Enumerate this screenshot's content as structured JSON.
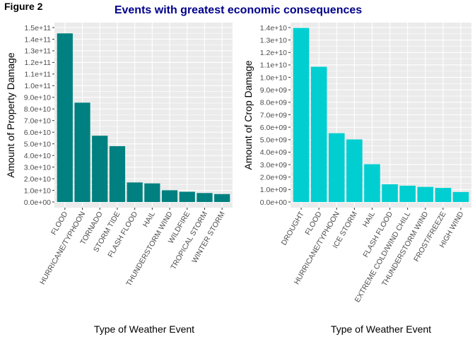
{
  "figure_label": "Figure 2",
  "title": "Events with greatest economic consequences",
  "colors": {
    "panel_bg": "#ebebeb",
    "grid": "#ffffff",
    "tick_text": "#4d4d4d",
    "title": "#00008b",
    "property_bar": "#008080",
    "crop_bar": "#00ced1"
  },
  "chart_data": [
    {
      "type": "bar",
      "title": "",
      "xlabel": "Type of Weather Event",
      "ylabel": "Amount of Property Damage",
      "categories": [
        "FLOOD",
        "HURRICANE/TYPHOON",
        "TORNADO",
        "STORM TIDE",
        "FLASH FLOOD",
        "HAIL",
        "THUNDERSTORM WIND",
        "WILDFIRE",
        "TROPICAL STORM",
        "WINTER STORM"
      ],
      "values": [
        145000000000,
        85400000000,
        57000000000,
        48000000000,
        16800000000,
        16000000000,
        10100000000,
        8800000000,
        7700000000,
        6800000000
      ],
      "ylim": [
        0,
        150000000000
      ],
      "yticks": [
        0,
        10000000000,
        20000000000,
        30000000000,
        40000000000,
        50000000000,
        60000000000,
        70000000000,
        80000000000,
        90000000000,
        100000000000,
        110000000000,
        120000000000,
        130000000000,
        140000000000,
        150000000000
      ],
      "ytick_labels": [
        "0.0e+00",
        "1.0e+10",
        "2.0e+10",
        "3.0e+10",
        "4.0e+10",
        "5.0e+10",
        "6.0e+10",
        "7.0e+10",
        "8.0e+10",
        "9.0e+10",
        "1.0e+11",
        "1.1e+11",
        "1.2e+11",
        "1.3e+11",
        "1.4e+11",
        "1.5e+11"
      ],
      "color": "#008080",
      "grid": true
    },
    {
      "type": "bar",
      "title": "",
      "xlabel": "Type of Weather Event",
      "ylabel": "Amount of Crop Damage",
      "categories": [
        "DROUGHT",
        "FLOOD",
        "HURRICANE/TYPHOON",
        "ICE STORM",
        "HAIL",
        "FLASH FLOOD",
        "EXTREME COLD/WIND CHILL",
        "THUNDERSTORM WIND",
        "FROST/FREEZE",
        "HIGH WIND"
      ],
      "values": [
        13970000000,
        10850000000,
        5520000000,
        5020000000,
        3030000000,
        1420000000,
        1310000000,
        1210000000,
        1130000000,
        800000000
      ],
      "ylim": [
        0,
        14000000000
      ],
      "yticks": [
        0,
        1000000000,
        2000000000,
        3000000000,
        4000000000,
        5000000000,
        6000000000,
        7000000000,
        8000000000,
        9000000000,
        10000000000,
        11000000000,
        12000000000,
        13000000000,
        14000000000
      ],
      "ytick_labels": [
        "0.0e+00",
        "1.0e+09",
        "2.0e+09",
        "3.0e+09",
        "4.0e+09",
        "5.0e+09",
        "6.0e+09",
        "7.0e+09",
        "8.0e+09",
        "9.0e+09",
        "1.0e+10",
        "1.1e+10",
        "1.2e+10",
        "1.3e+10",
        "1.4e+10"
      ],
      "color": "#00ced1",
      "grid": true
    }
  ]
}
